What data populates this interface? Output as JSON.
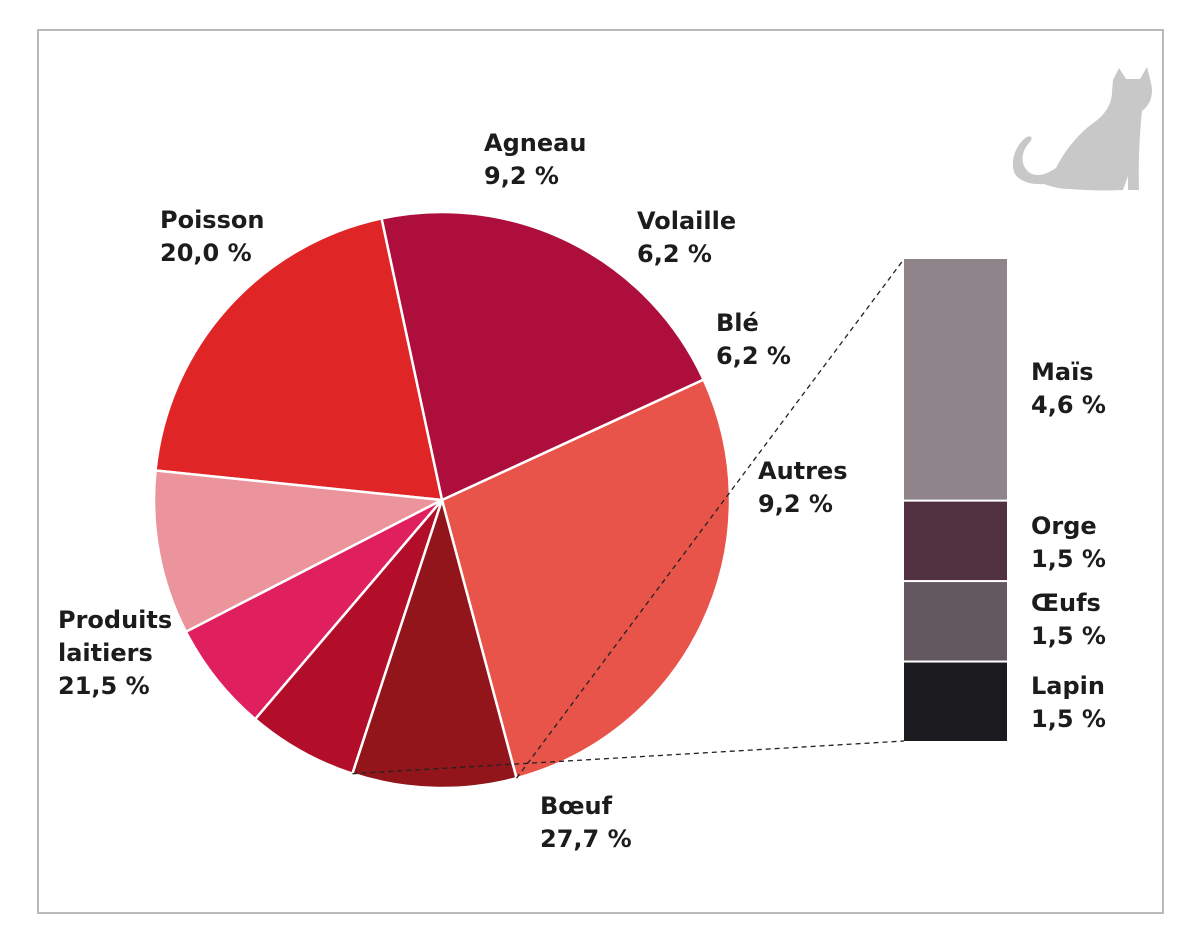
{
  "chart_data": {
    "type": "pie",
    "title": "",
    "slices": [
      {
        "label": "Bœuf",
        "value": 27.7,
        "value_text": "27,7 %",
        "color": "#e8544a"
      },
      {
        "label": "Produits laitiers",
        "label_lines": [
          "Produits",
          "laitiers"
        ],
        "value": 21.5,
        "value_text": "21,5 %",
        "color": "#ad0e3b"
      },
      {
        "label": "Poisson",
        "value": 20.0,
        "value_text": "20,0 %",
        "color": "#e02526"
      },
      {
        "label": "Agneau",
        "value": 9.2,
        "value_text": "9,2 %",
        "color": "#ec949c"
      },
      {
        "label": "Volaille",
        "value": 6.2,
        "value_text": "6,2 %",
        "color": "#e01f5f"
      },
      {
        "label": "Blé",
        "value": 6.2,
        "value_text": "6,2 %",
        "color": "#b20e2a"
      },
      {
        "label": "Autres",
        "value": 9.2,
        "value_text": "9,2 %",
        "color": "#91151a"
      }
    ],
    "breakdown": {
      "of": "Autres",
      "type": "stacked-bar",
      "segments": [
        {
          "label": "Maïs",
          "value": 4.6,
          "value_text": "4,6 %",
          "color": "#8f848a"
        },
        {
          "label": "Orge",
          "value": 1.5,
          "value_text": "1,5 %",
          "color": "#513140"
        },
        {
          "label": "Œufs",
          "value": 1.5,
          "value_text": "1,5 %",
          "color": "#645860"
        },
        {
          "label": "Lapin",
          "value": 1.5,
          "value_text": "1,5 %",
          "color": "#1b1a1e"
        }
      ]
    }
  },
  "decoration": {
    "icon": "cat-icon",
    "icon_color": "#c8c8c8"
  }
}
